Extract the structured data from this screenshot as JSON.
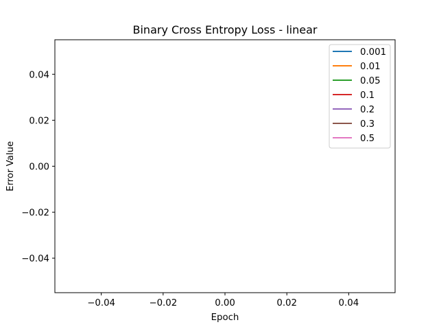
{
  "chart_data": {
    "type": "line",
    "title": "Binary Cross Entropy Loss - linear",
    "xlabel": "Epoch",
    "ylabel": "Error Value",
    "xlim": [
      -0.055,
      0.055
    ],
    "ylim": [
      -0.055,
      0.055
    ],
    "xticks": [
      -0.04,
      -0.02,
      0.0,
      0.02,
      0.04
    ],
    "xtick_labels": [
      "−0.04",
      "−0.02",
      "0.00",
      "0.02",
      "0.04"
    ],
    "yticks": [
      -0.04,
      -0.02,
      0.0,
      0.02,
      0.04
    ],
    "ytick_labels": [
      "−0.04",
      "−0.02",
      "0.00",
      "0.02",
      "0.04"
    ],
    "grid": false,
    "legend_position": "top-right",
    "series": [
      {
        "name": "0.001",
        "color": "#1f77b4",
        "x": [],
        "y": []
      },
      {
        "name": "0.01",
        "color": "#ff7f0e",
        "x": [],
        "y": []
      },
      {
        "name": "0.05",
        "color": "#2ca02c",
        "x": [],
        "y": []
      },
      {
        "name": "0.1",
        "color": "#d62728",
        "x": [],
        "y": []
      },
      {
        "name": "0.2",
        "color": "#9467bd",
        "x": [],
        "y": []
      },
      {
        "name": "0.3",
        "color": "#8c564b",
        "x": [],
        "y": []
      },
      {
        "name": "0.5",
        "color": "#e377c2",
        "x": [],
        "y": []
      }
    ]
  }
}
